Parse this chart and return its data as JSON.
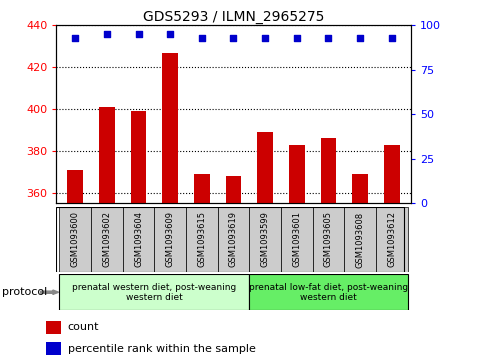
{
  "title": "GDS5293 / ILMN_2965275",
  "samples": [
    "GSM1093600",
    "GSM1093602",
    "GSM1093604",
    "GSM1093609",
    "GSM1093615",
    "GSM1093619",
    "GSM1093599",
    "GSM1093601",
    "GSM1093605",
    "GSM1093608",
    "GSM1093612"
  ],
  "counts": [
    371,
    401,
    399,
    427,
    369,
    368,
    389,
    383,
    386,
    369,
    383
  ],
  "percentiles": [
    93,
    95,
    95,
    95,
    93,
    93,
    93,
    93,
    93,
    93,
    93
  ],
  "ylim_left": [
    355,
    440
  ],
  "ylim_right": [
    0,
    100
  ],
  "yticks_left": [
    360,
    380,
    400,
    420,
    440
  ],
  "yticks_right": [
    0,
    25,
    50,
    75,
    100
  ],
  "group1_label": "prenatal western diet, post-weaning\nwestern diet",
  "group2_label": "prenatal low-fat diet, post-weaning\nwestern diet",
  "group1_count": 6,
  "group2_count": 5,
  "bar_color": "#cc0000",
  "dot_color": "#0000cc",
  "tick_bg": "#cccccc",
  "group1_bg": "#ccffcc",
  "group2_bg": "#66ee66",
  "legend_count_label": "count",
  "legend_pct_label": "percentile rank within the sample"
}
